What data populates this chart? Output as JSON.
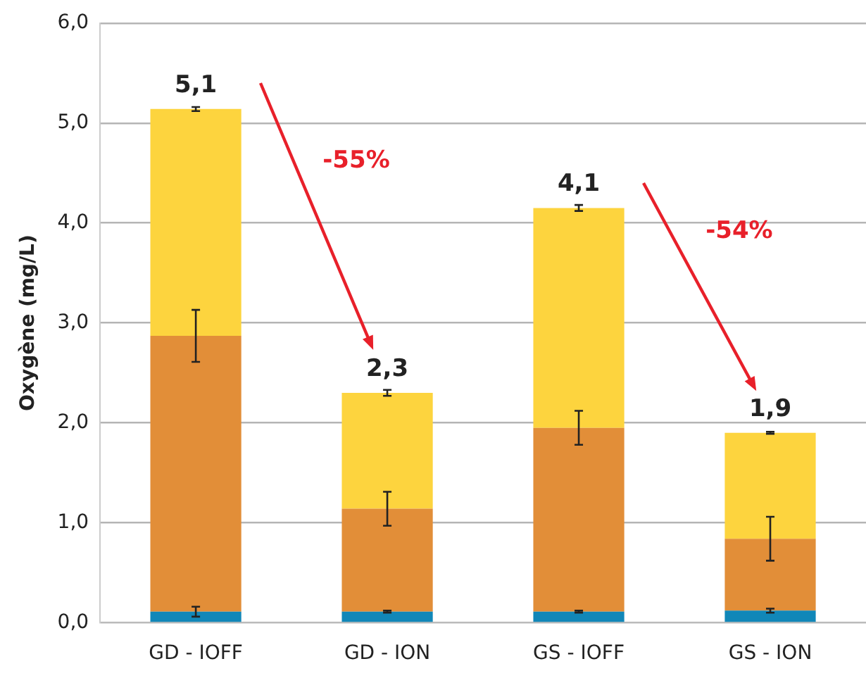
{
  "chart_data": {
    "type": "bar",
    "stacked": true,
    "ylabel": "Oxygène (mg/L)",
    "categories": [
      "GD - IOFF",
      "GD - ION",
      "GS - IOFF",
      "GS - ION"
    ],
    "series": [
      {
        "color": "#1187b8",
        "values": [
          0.11,
          0.11,
          0.11,
          0.12
        ],
        "errors": [
          0.05,
          0.01,
          0.01,
          0.02
        ]
      },
      {
        "color": "#e28e38",
        "values": [
          2.76,
          1.03,
          1.84,
          0.72
        ],
        "errors": [
          0.26,
          0.17,
          0.17,
          0.22
        ]
      },
      {
        "color": "#fdd43e",
        "values": [
          2.27,
          1.16,
          2.2,
          1.06
        ],
        "errors": [
          0.02,
          0.03,
          0.03,
          0.01
        ]
      }
    ],
    "totals": [
      "5,1",
      "2,3",
      "4,1",
      "1,9"
    ],
    "annotations": [
      "-55%",
      "-54%"
    ],
    "ylim": [
      0,
      6
    ],
    "yticks": [
      {
        "value": 0,
        "label": "0,0"
      },
      {
        "value": 1,
        "label": "1,0"
      },
      {
        "value": 2,
        "label": "2,0"
      },
      {
        "value": 3,
        "label": "3,0"
      },
      {
        "value": 4,
        "label": "4,0"
      },
      {
        "value": 5,
        "label": "5,0"
      },
      {
        "value": 6,
        "label": "6,0"
      }
    ],
    "grid": "y",
    "legend": false
  }
}
